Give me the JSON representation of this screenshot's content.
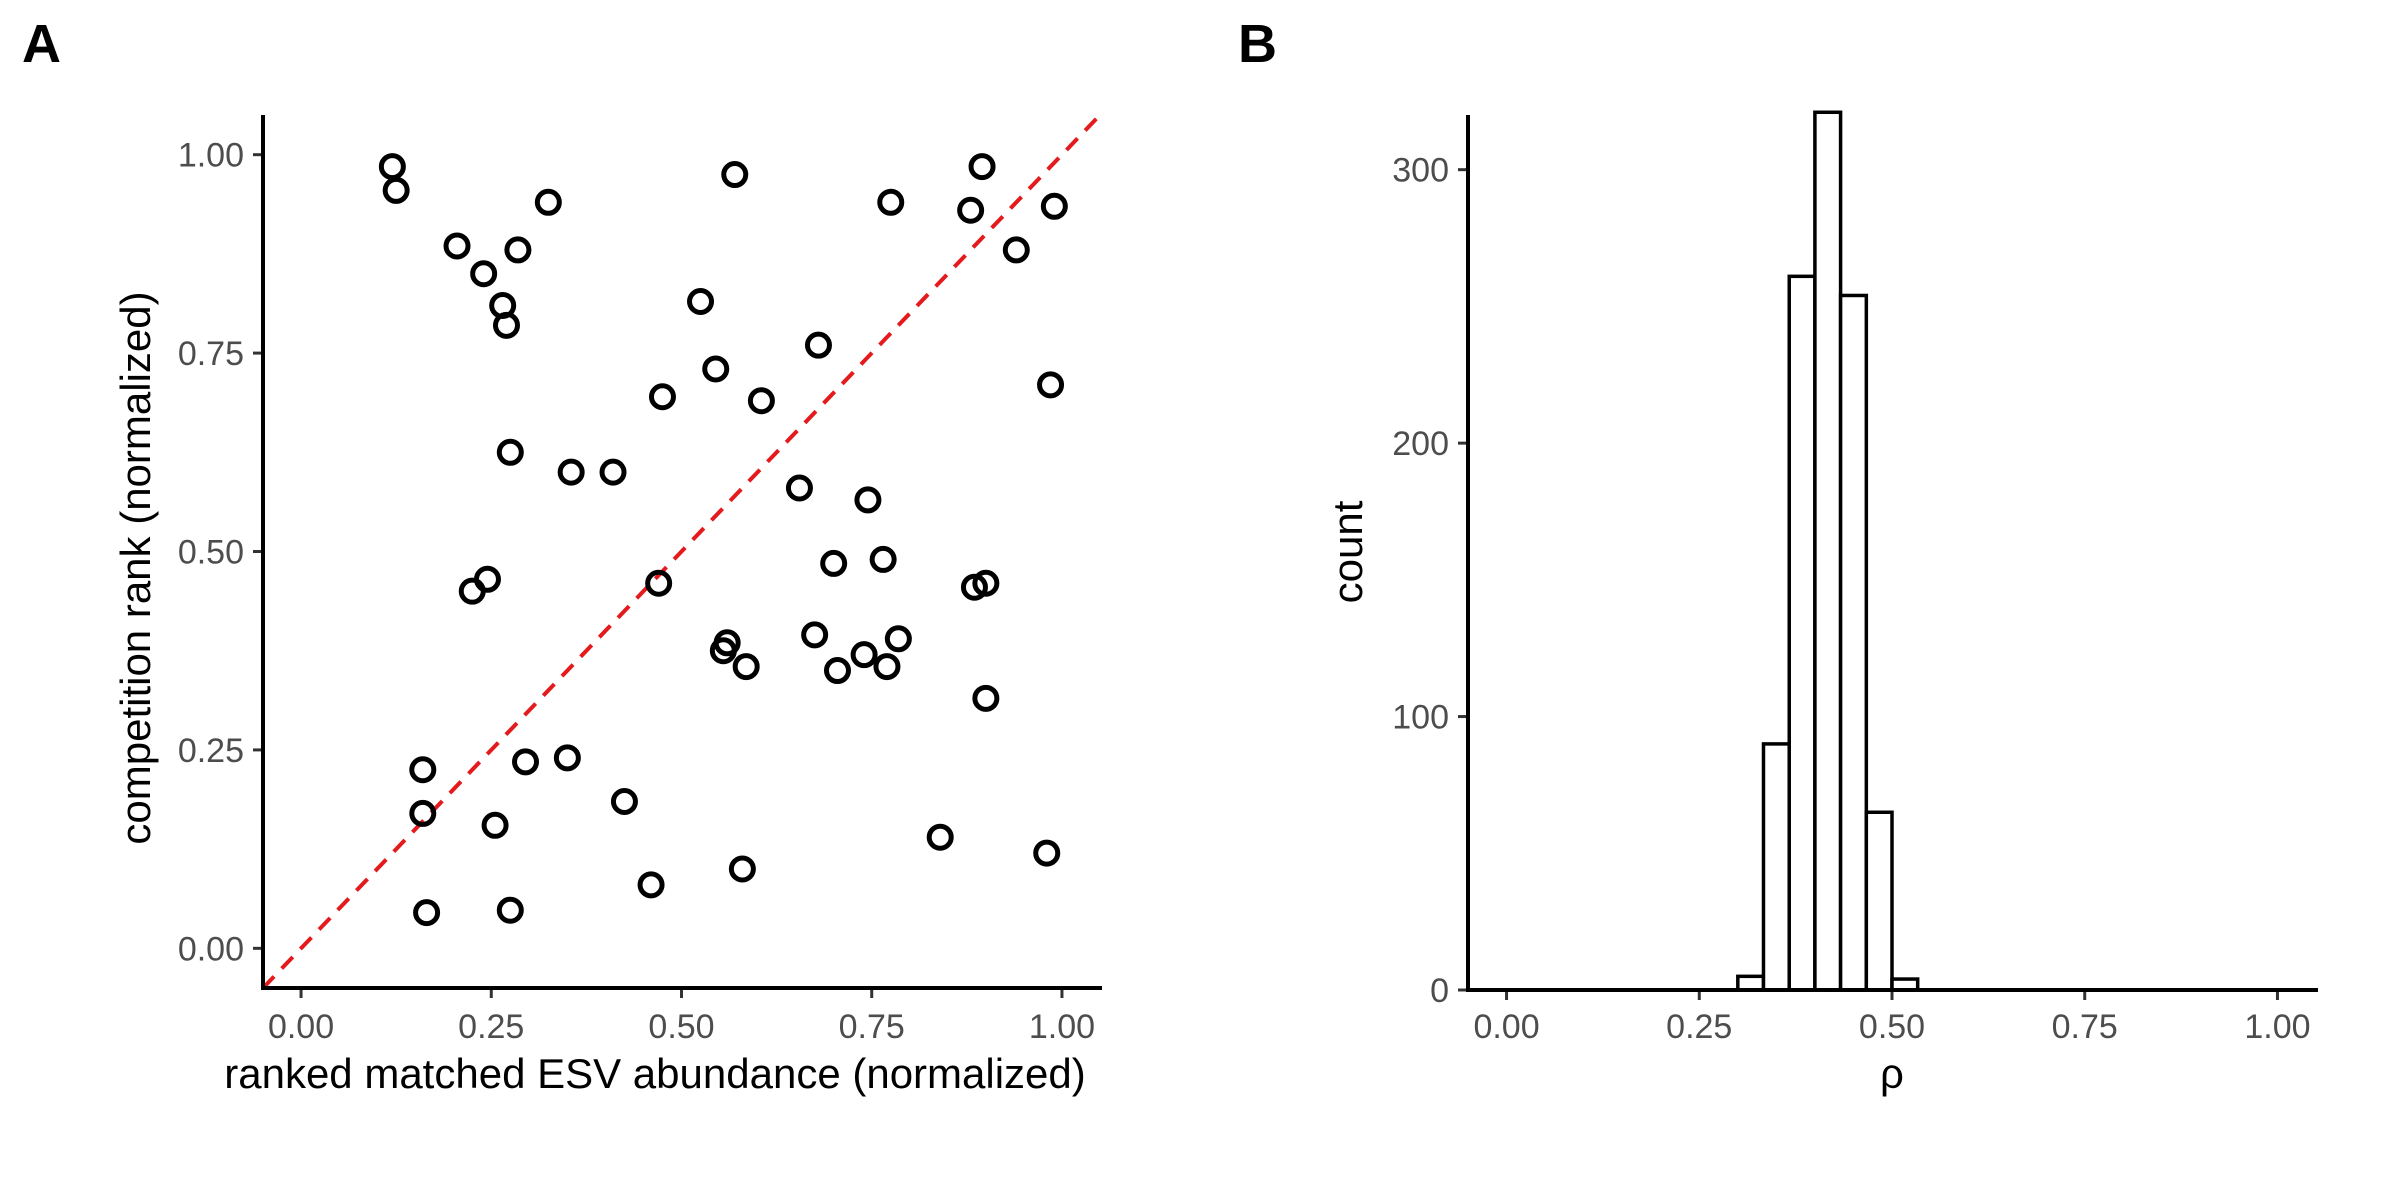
{
  "panels": [
    {
      "letter": "A",
      "chart_data": {
        "type": "scatter",
        "xlabel": "ranked matched ESV abundance (normalized)",
        "ylabel": "competition rank (normalized)",
        "xlim": [
          -0.05,
          1.05
        ],
        "ylim": [
          -0.05,
          1.05
        ],
        "xticks": [
          0,
          0.25,
          0.5,
          0.75,
          1
        ],
        "yticks": [
          0,
          0.25,
          0.5,
          0.75,
          1
        ],
        "xtick_labels": [
          "0.00",
          "0.25",
          "0.50",
          "0.75",
          "1.00"
        ],
        "ytick_labels": [
          "0.00",
          "0.25",
          "0.50",
          "0.75",
          "1.00"
        ],
        "reference_line": {
          "slope": 1,
          "intercept": 0,
          "style": "dashed",
          "color": "#e41a1c"
        },
        "marker": {
          "shape": "open-circle",
          "color": "#000000"
        },
        "points": [
          [
            0.12,
            0.985
          ],
          [
            0.125,
            0.955
          ],
          [
            0.205,
            0.885
          ],
          [
            0.24,
            0.85
          ],
          [
            0.285,
            0.88
          ],
          [
            0.325,
            0.94
          ],
          [
            0.265,
            0.81
          ],
          [
            0.27,
            0.785
          ],
          [
            0.57,
            0.975
          ],
          [
            0.775,
            0.94
          ],
          [
            0.88,
            0.93
          ],
          [
            0.895,
            0.985
          ],
          [
            0.99,
            0.935
          ],
          [
            0.94,
            0.88
          ],
          [
            0.525,
            0.815
          ],
          [
            0.68,
            0.76
          ],
          [
            0.545,
            0.73
          ],
          [
            0.475,
            0.695
          ],
          [
            0.605,
            0.69
          ],
          [
            0.985,
            0.71
          ],
          [
            0.275,
            0.625
          ],
          [
            0.355,
            0.6
          ],
          [
            0.41,
            0.6
          ],
          [
            0.655,
            0.58
          ],
          [
            0.745,
            0.565
          ],
          [
            0.7,
            0.485
          ],
          [
            0.765,
            0.49
          ],
          [
            0.225,
            0.45
          ],
          [
            0.245,
            0.465
          ],
          [
            0.47,
            0.46
          ],
          [
            0.885,
            0.455
          ],
          [
            0.9,
            0.46
          ],
          [
            0.555,
            0.375
          ],
          [
            0.56,
            0.385
          ],
          [
            0.585,
            0.355
          ],
          [
            0.675,
            0.395
          ],
          [
            0.705,
            0.35
          ],
          [
            0.74,
            0.37
          ],
          [
            0.77,
            0.355
          ],
          [
            0.785,
            0.39
          ],
          [
            0.9,
            0.315
          ],
          [
            0.16,
            0.225
          ],
          [
            0.16,
            0.17
          ],
          [
            0.295,
            0.235
          ],
          [
            0.35,
            0.24
          ],
          [
            0.255,
            0.155
          ],
          [
            0.425,
            0.185
          ],
          [
            0.165,
            0.045
          ],
          [
            0.275,
            0.048
          ],
          [
            0.46,
            0.08
          ],
          [
            0.58,
            0.1
          ],
          [
            0.84,
            0.14
          ],
          [
            0.98,
            0.12
          ]
        ]
      }
    },
    {
      "letter": "B",
      "chart_data": {
        "type": "bar",
        "xlabel": "ρ",
        "ylabel": "count",
        "xlim": [
          -0.05,
          1.05
        ],
        "ylim": [
          0,
          320
        ],
        "xticks": [
          0,
          0.25,
          0.5,
          0.75,
          1
        ],
        "yticks": [
          0,
          100,
          200,
          300
        ],
        "xtick_labels": [
          "0.00",
          "0.25",
          "0.50",
          "0.75",
          "1.00"
        ],
        "ytick_labels": [
          "0",
          "100",
          "200",
          "300"
        ],
        "bin_width": 0.0333,
        "bins": [
          {
            "x0": 0.3,
            "x1": 0.3333,
            "count": 5
          },
          {
            "x0": 0.3333,
            "x1": 0.3667,
            "count": 90
          },
          {
            "x0": 0.3667,
            "x1": 0.4,
            "count": 261
          },
          {
            "x0": 0.4,
            "x1": 0.4333,
            "count": 321
          },
          {
            "x0": 0.4333,
            "x1": 0.4667,
            "count": 254
          },
          {
            "x0": 0.4667,
            "x1": 0.5,
            "count": 65
          },
          {
            "x0": 0.5,
            "x1": 0.5333,
            "count": 4
          }
        ]
      }
    }
  ]
}
